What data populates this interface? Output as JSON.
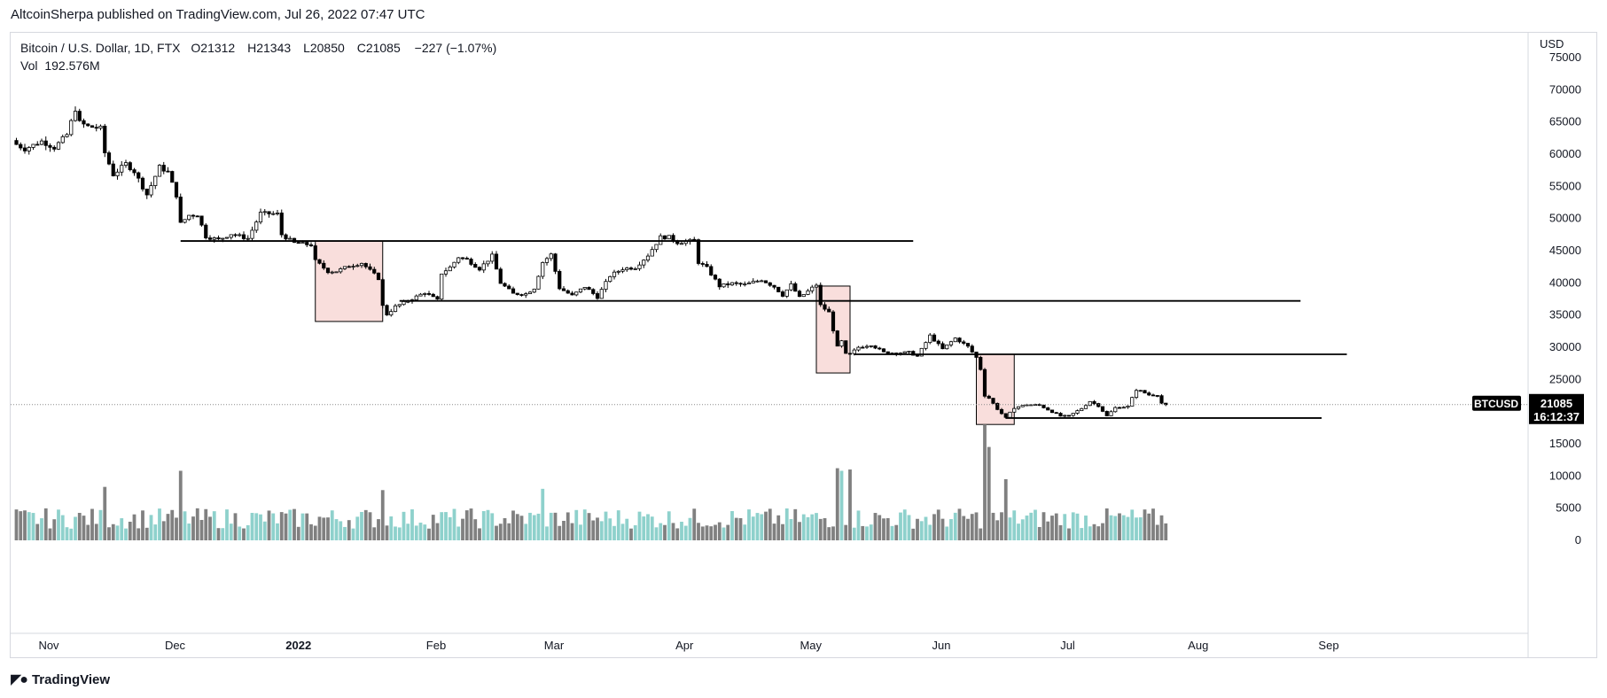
{
  "publisher_line": "AltcoinSherpa published on TradingView.com, Jul 26, 2022 07:47 UTC",
  "footer_brand": "TradingView",
  "legend": {
    "symbol": "Bitcoin / U.S. Dollar, 1D, FTX",
    "open_label": "O",
    "open": "21312",
    "high_label": "H",
    "high": "21343",
    "low_label": "L",
    "low": "20850",
    "close_label": "C",
    "close": "21085",
    "change": "−227 (−1.07%)",
    "volume_label": "Vol",
    "volume": "192.576M"
  },
  "price_badge": {
    "ticker": "BTCUSD",
    "price": "21085",
    "countdown": "16:12:37"
  },
  "colors": {
    "up_candle": "#ffffff",
    "down_candle": "#000000",
    "candle_border": "#000000",
    "volume_up": "#8ed1cc",
    "volume_down": "#808080",
    "zone_fill": "#f9dedc",
    "level_line": "#000000",
    "last_price_line": "#8a8a8a"
  },
  "chart_data": {
    "type": "candlestick",
    "symbol": "BTCUSD",
    "interval": "1D",
    "ylabel": "USD",
    "y_ticks": [
      0,
      5000,
      10000,
      15000,
      20000,
      25000,
      30000,
      35000,
      40000,
      45000,
      50000,
      55000,
      60000,
      65000,
      70000,
      75000
    ],
    "y_tick_labels": [
      "0",
      "5000",
      "10000",
      "15000",
      "20000",
      "25000",
      "30000",
      "35000",
      "40000",
      "45000",
      "50000",
      "55000",
      "60000",
      "65000",
      "70000",
      "75000"
    ],
    "x_ticks": [
      {
        "date": "2021-11-01",
        "label": "Nov"
      },
      {
        "date": "2021-12-01",
        "label": "Dec"
      },
      {
        "date": "2022-01-01",
        "label": "2022"
      },
      {
        "date": "2022-02-01",
        "label": "Feb"
      },
      {
        "date": "2022-03-01",
        "label": "Mar"
      },
      {
        "date": "2022-04-01",
        "label": "Apr"
      },
      {
        "date": "2022-05-01",
        "label": "May"
      },
      {
        "date": "2022-06-01",
        "label": "Jun"
      },
      {
        "date": "2022-07-01",
        "label": "Jul"
      },
      {
        "date": "2022-08-01",
        "label": "Aug"
      },
      {
        "date": "2022-09-01",
        "label": "Sep"
      }
    ],
    "anchors": [
      {
        "date": "2021-10-26",
        "close": 61500
      },
      {
        "date": "2021-10-28",
        "close": 60800
      },
      {
        "date": "2021-11-01",
        "close": 62000
      },
      {
        "date": "2021-11-04",
        "close": 61000
      },
      {
        "date": "2021-11-07",
        "close": 63000
      },
      {
        "date": "2021-11-09",
        "close": 67000
      },
      {
        "date": "2021-11-10",
        "close": 64900
      },
      {
        "date": "2021-11-12",
        "close": 64300
      },
      {
        "date": "2021-11-15",
        "close": 64000
      },
      {
        "date": "2021-11-16",
        "close": 60200
      },
      {
        "date": "2021-11-18",
        "close": 56800
      },
      {
        "date": "2021-11-21",
        "close": 58500
      },
      {
        "date": "2021-11-23",
        "close": 57300
      },
      {
        "date": "2021-11-26",
        "close": 53700
      },
      {
        "date": "2021-11-29",
        "close": 58000
      },
      {
        "date": "2021-12-01",
        "close": 57200
      },
      {
        "date": "2021-12-03",
        "close": 53600
      },
      {
        "date": "2021-12-04",
        "close": 49200
      },
      {
        "date": "2021-12-06",
        "close": 50500
      },
      {
        "date": "2021-12-08",
        "close": 50600
      },
      {
        "date": "2021-12-10",
        "close": 47200
      },
      {
        "date": "2021-12-13",
        "close": 46700
      },
      {
        "date": "2021-12-16",
        "close": 47600
      },
      {
        "date": "2021-12-20",
        "close": 46900
      },
      {
        "date": "2021-12-23",
        "close": 50800
      },
      {
        "date": "2021-12-27",
        "close": 50700
      },
      {
        "date": "2021-12-28",
        "close": 47500
      },
      {
        "date": "2021-12-31",
        "close": 46200
      },
      {
        "date": "2022-01-04",
        "close": 45900
      },
      {
        "date": "2022-01-05",
        "close": 43400
      },
      {
        "date": "2022-01-08",
        "close": 41800
      },
      {
        "date": "2022-01-10",
        "close": 41800
      },
      {
        "date": "2022-01-13",
        "close": 42600
      },
      {
        "date": "2022-01-16",
        "close": 43100
      },
      {
        "date": "2022-01-20",
        "close": 40700
      },
      {
        "date": "2022-01-21",
        "close": 36400
      },
      {
        "date": "2022-01-22",
        "close": 35100
      },
      {
        "date": "2022-01-24",
        "close": 36300
      },
      {
        "date": "2022-01-27",
        "close": 37200
      },
      {
        "date": "2022-01-31",
        "close": 38500
      },
      {
        "date": "2022-02-03",
        "close": 37300
      },
      {
        "date": "2022-02-04",
        "close": 41500
      },
      {
        "date": "2022-02-06",
        "close": 42400
      },
      {
        "date": "2022-02-08",
        "close": 44000
      },
      {
        "date": "2022-02-10",
        "close": 43600
      },
      {
        "date": "2022-02-13",
        "close": 42200
      },
      {
        "date": "2022-02-16",
        "close": 44200
      },
      {
        "date": "2022-02-18",
        "close": 40000
      },
      {
        "date": "2022-02-21",
        "close": 38300
      },
      {
        "date": "2022-02-24",
        "close": 38300
      },
      {
        "date": "2022-02-26",
        "close": 39200
      },
      {
        "date": "2022-02-28",
        "close": 43200
      },
      {
        "date": "2022-03-02",
        "close": 44400
      },
      {
        "date": "2022-03-04",
        "close": 39200
      },
      {
        "date": "2022-03-07",
        "close": 38000
      },
      {
        "date": "2022-03-10",
        "close": 39400
      },
      {
        "date": "2022-03-13",
        "close": 37800
      },
      {
        "date": "2022-03-16",
        "close": 41100
      },
      {
        "date": "2022-03-19",
        "close": 42200
      },
      {
        "date": "2022-03-22",
        "close": 42400
      },
      {
        "date": "2022-03-25",
        "close": 44300
      },
      {
        "date": "2022-03-28",
        "close": 47100
      },
      {
        "date": "2022-03-30",
        "close": 47100
      },
      {
        "date": "2022-04-01",
        "close": 46300
      },
      {
        "date": "2022-04-03",
        "close": 46400
      },
      {
        "date": "2022-04-05",
        "close": 46600
      },
      {
        "date": "2022-04-06",
        "close": 43200
      },
      {
        "date": "2022-04-08",
        "close": 42300
      },
      {
        "date": "2022-04-11",
        "close": 39500
      },
      {
        "date": "2022-04-14",
        "close": 39900
      },
      {
        "date": "2022-04-17",
        "close": 39700
      },
      {
        "date": "2022-04-21",
        "close": 40500
      },
      {
        "date": "2022-04-24",
        "close": 39400
      },
      {
        "date": "2022-04-26",
        "close": 38100
      },
      {
        "date": "2022-04-28",
        "close": 39700
      },
      {
        "date": "2022-04-30",
        "close": 37700
      },
      {
        "date": "2022-05-04",
        "close": 39700
      },
      {
        "date": "2022-05-05",
        "close": 36500
      },
      {
        "date": "2022-05-07",
        "close": 35400
      },
      {
        "date": "2022-05-09",
        "close": 30000
      },
      {
        "date": "2022-05-10",
        "close": 30900
      },
      {
        "date": "2022-05-11",
        "close": 28900
      },
      {
        "date": "2022-05-12",
        "close": 28900
      },
      {
        "date": "2022-05-14",
        "close": 30000
      },
      {
        "date": "2022-05-17",
        "close": 30400
      },
      {
        "date": "2022-05-20",
        "close": 29200
      },
      {
        "date": "2022-05-23",
        "close": 29100
      },
      {
        "date": "2022-05-26",
        "close": 29200
      },
      {
        "date": "2022-05-28",
        "close": 28600
      },
      {
        "date": "2022-05-31",
        "close": 31800
      },
      {
        "date": "2022-06-03",
        "close": 29700
      },
      {
        "date": "2022-06-06",
        "close": 31400
      },
      {
        "date": "2022-06-09",
        "close": 30100
      },
      {
        "date": "2022-06-11",
        "close": 28400
      },
      {
        "date": "2022-06-12",
        "close": 26600
      },
      {
        "date": "2022-06-13",
        "close": 22500
      },
      {
        "date": "2022-06-14",
        "close": 22100
      },
      {
        "date": "2022-06-16",
        "close": 20400
      },
      {
        "date": "2022-06-18",
        "close": 19000
      },
      {
        "date": "2022-06-20",
        "close": 20600
      },
      {
        "date": "2022-06-23",
        "close": 21100
      },
      {
        "date": "2022-06-26",
        "close": 21000
      },
      {
        "date": "2022-06-28",
        "close": 20300
      },
      {
        "date": "2022-07-01",
        "close": 19300
      },
      {
        "date": "2022-07-03",
        "close": 19300
      },
      {
        "date": "2022-07-06",
        "close": 20500
      },
      {
        "date": "2022-07-08",
        "close": 21600
      },
      {
        "date": "2022-07-10",
        "close": 20900
      },
      {
        "date": "2022-07-12",
        "close": 19300
      },
      {
        "date": "2022-07-14",
        "close": 20600
      },
      {
        "date": "2022-07-17",
        "close": 20800
      },
      {
        "date": "2022-07-19",
        "close": 23400
      },
      {
        "date": "2022-07-20",
        "close": 23200
      },
      {
        "date": "2022-07-22",
        "close": 22600
      },
      {
        "date": "2022-07-24",
        "close": 22600
      },
      {
        "date": "2022-07-25",
        "close": 21312
      },
      {
        "date": "2022-07-26",
        "close": 21085
      }
    ],
    "last_candle": {
      "date": "2022-07-26",
      "open": 21312,
      "high": 21343,
      "low": 20850,
      "close": 21085
    },
    "volume_spikes": [
      {
        "date": "2021-11-16",
        "value": 8300
      },
      {
        "date": "2021-12-04",
        "value": 10800
      },
      {
        "date": "2022-01-21",
        "value": 7800
      },
      {
        "date": "2022-02-28",
        "value": 8000
      },
      {
        "date": "2022-05-09",
        "value": 11200
      },
      {
        "date": "2022-05-10",
        "value": 10800
      },
      {
        "date": "2022-05-12",
        "value": 11000
      },
      {
        "date": "2022-06-13",
        "value": 18000
      },
      {
        "date": "2022-06-14",
        "value": 14500
      },
      {
        "date": "2022-06-18",
        "value": 9500
      }
    ],
    "horizontal_levels": [
      {
        "price": 46500,
        "from": "2021-12-04",
        "to": "2022-05-27"
      },
      {
        "price": 37200,
        "from": "2022-01-25",
        "to": "2022-08-27"
      },
      {
        "price": 28900,
        "from": "2022-05-13",
        "to": "2022-09-07"
      },
      {
        "price": 19000,
        "from": "2022-06-18",
        "to": "2022-09-01"
      }
    ],
    "shaded_zones": [
      {
        "from": "2022-01-05",
        "to": "2022-01-21",
        "high": 46500,
        "low": 34000
      },
      {
        "from": "2022-05-04",
        "to": "2022-05-12",
        "high": 39500,
        "low": 26000
      },
      {
        "from": "2022-06-11",
        "to": "2022-06-20",
        "high": 28900,
        "low": 18000
      }
    ],
    "last_price_line": 21085
  }
}
